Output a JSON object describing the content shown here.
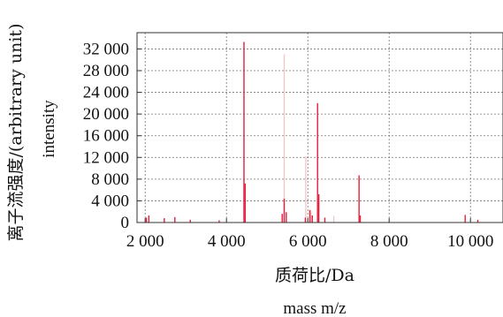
{
  "chart_data": {
    "type": "bar",
    "title": "",
    "xlabel": "质荷比/Da",
    "xlabel_en": "mass m/z",
    "ylabel": "离子流强度/(arbitrary unit)",
    "ylabel_en": "intensity",
    "xlim": [
      1800,
      10800
    ],
    "ylim": [
      0,
      35000
    ],
    "x_ticks": [
      2000,
      4000,
      6000,
      8000,
      10000
    ],
    "x_tick_labels": [
      "2 000",
      "4 000",
      "6 000",
      "8 000",
      "10 000"
    ],
    "y_ticks": [
      0,
      4000,
      8000,
      12000,
      16000,
      20000,
      24000,
      28000,
      32000
    ],
    "y_tick_labels": [
      "0",
      "4 000",
      "8 000",
      "12 000",
      "16 000",
      "20 000",
      "24 000",
      "28 000",
      "32 000"
    ],
    "grid": true,
    "series": [
      {
        "color": "#e41e3c",
        "points": [
          {
            "x": 2030,
            "y": 900
          },
          {
            "x": 2090,
            "y": 1300
          },
          {
            "x": 2470,
            "y": 800
          },
          {
            "x": 2730,
            "y": 1000
          },
          {
            "x": 3110,
            "y": 500
          },
          {
            "x": 3820,
            "y": 400
          },
          {
            "x": 4430,
            "y": 33300
          },
          {
            "x": 4460,
            "y": 7200
          },
          {
            "x": 5370,
            "y": 1600
          },
          {
            "x": 5420,
            "y": 4400
          },
          {
            "x": 5470,
            "y": 1900
          },
          {
            "x": 5940,
            "y": 900
          },
          {
            "x": 6050,
            "y": 2300
          },
          {
            "x": 6110,
            "y": 1300
          },
          {
            "x": 6240,
            "y": 22000
          },
          {
            "x": 6270,
            "y": 5200
          },
          {
            "x": 6420,
            "y": 900
          },
          {
            "x": 7260,
            "y": 8700
          },
          {
            "x": 7290,
            "y": 1300
          },
          {
            "x": 9870,
            "y": 1400
          },
          {
            "x": 10180,
            "y": 500
          }
        ]
      },
      {
        "color": "#f2c8c8",
        "points": [
          {
            "x": 5420,
            "y": 31000
          },
          {
            "x": 5950,
            "y": 12200
          },
          {
            "x": 6080,
            "y": 2200
          },
          {
            "x": 6640,
            "y": 1200
          }
        ]
      }
    ]
  }
}
